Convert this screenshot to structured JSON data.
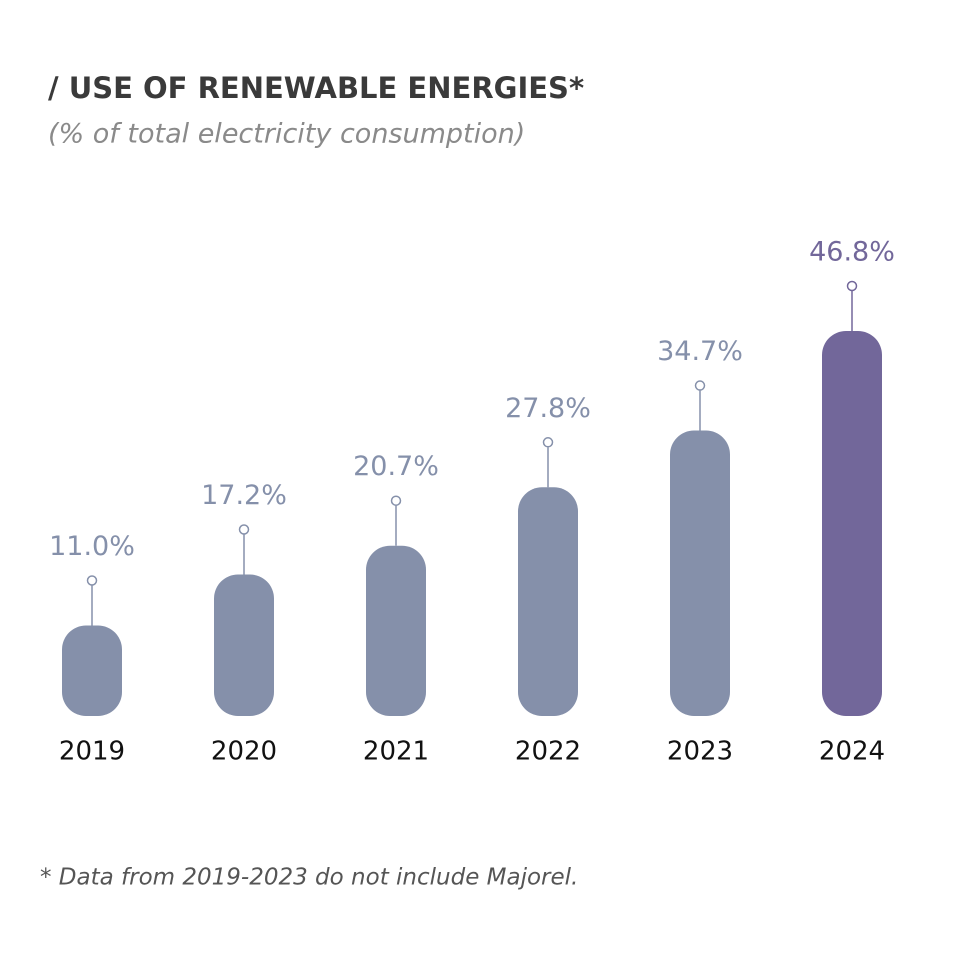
{
  "chart_data": {
    "type": "bar",
    "title": "/ USE OF RENEWABLE ENERGIES*",
    "subtitle": "(% of total electricity consumption)",
    "footnote": "* Data from 2019-2023 do not include Majorel.",
    "categories": [
      "2019",
      "2020",
      "2021",
      "2022",
      "2023",
      "2024"
    ],
    "values": [
      11.0,
      17.2,
      20.7,
      27.8,
      34.7,
      46.8
    ],
    "value_labels": [
      "11.0%",
      "17.2%",
      "20.7%",
      "27.8%",
      "34.7%",
      "46.8%"
    ],
    "colors": [
      "#8590aa",
      "#8590aa",
      "#8590aa",
      "#8590aa",
      "#8590aa",
      "#72679a"
    ]
  }
}
